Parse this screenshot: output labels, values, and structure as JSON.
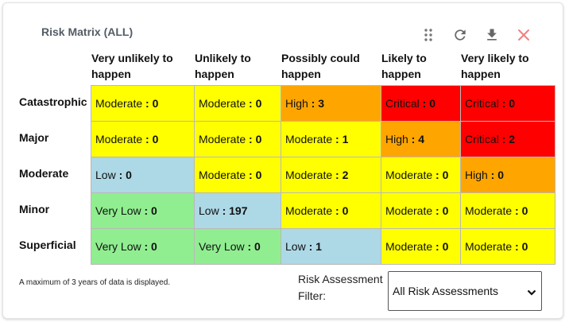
{
  "title": "Risk Matrix (ALL)",
  "toolbar": {
    "drag_icon": "drag-handle-icon",
    "refresh_icon": "refresh-icon",
    "download_icon": "download-icon",
    "close_icon": "close-icon",
    "close_color": "#f08080"
  },
  "columns": [
    {
      "line1": "Very unlikely to",
      "line2": "happen"
    },
    {
      "line1": "Unlikely to",
      "line2": "happen"
    },
    {
      "line1": "Possibly could",
      "line2": "happen"
    },
    {
      "line1": "Likely to",
      "line2": "happen"
    },
    {
      "line1": "Very likely to",
      "line2": "happen"
    }
  ],
  "rows": [
    {
      "label": "Catastrophic",
      "cells": [
        {
          "level": "Moderate",
          "count": "0"
        },
        {
          "level": "Moderate",
          "count": "0"
        },
        {
          "level": "High",
          "count": "3"
        },
        {
          "level": "Critical",
          "count": "0"
        },
        {
          "level": "Critical",
          "count": "0"
        }
      ]
    },
    {
      "label": "Major",
      "cells": [
        {
          "level": "Moderate",
          "count": "0"
        },
        {
          "level": "Moderate",
          "count": "0"
        },
        {
          "level": "Moderate",
          "count": "1"
        },
        {
          "level": "High",
          "count": "4"
        },
        {
          "level": "Critical",
          "count": "2"
        }
      ]
    },
    {
      "label": "Moderate",
      "cells": [
        {
          "level": "Low",
          "count": "0"
        },
        {
          "level": "Moderate",
          "count": "0"
        },
        {
          "level": "Moderate",
          "count": "2"
        },
        {
          "level": "Moderate",
          "count": "0"
        },
        {
          "level": "High",
          "count": "0"
        }
      ]
    },
    {
      "label": "Minor",
      "cells": [
        {
          "level": "Very Low",
          "count": "0"
        },
        {
          "level": "Low",
          "count": "197"
        },
        {
          "level": "Moderate",
          "count": "0"
        },
        {
          "level": "Moderate",
          "count": "0"
        },
        {
          "level": "Moderate",
          "count": "0"
        }
      ]
    },
    {
      "label": "Superficial",
      "cells": [
        {
          "level": "Very Low",
          "count": "0"
        },
        {
          "level": "Very Low",
          "count": "0"
        },
        {
          "level": "Low",
          "count": "1"
        },
        {
          "level": "Moderate",
          "count": "0"
        },
        {
          "level": "Moderate",
          "count": "0"
        }
      ]
    }
  ],
  "level_colors": {
    "Very Low": "#90ee90",
    "Low": "#add8e6",
    "Moderate": "#ffff00",
    "High": "#ffa500",
    "Critical": "#ff0000"
  },
  "footnote": "A maximum of 3 years of data is displayed.",
  "filter": {
    "label_line1": "Risk Assessment",
    "label_line2": "Filter:",
    "selected": "All Risk Assessments"
  }
}
